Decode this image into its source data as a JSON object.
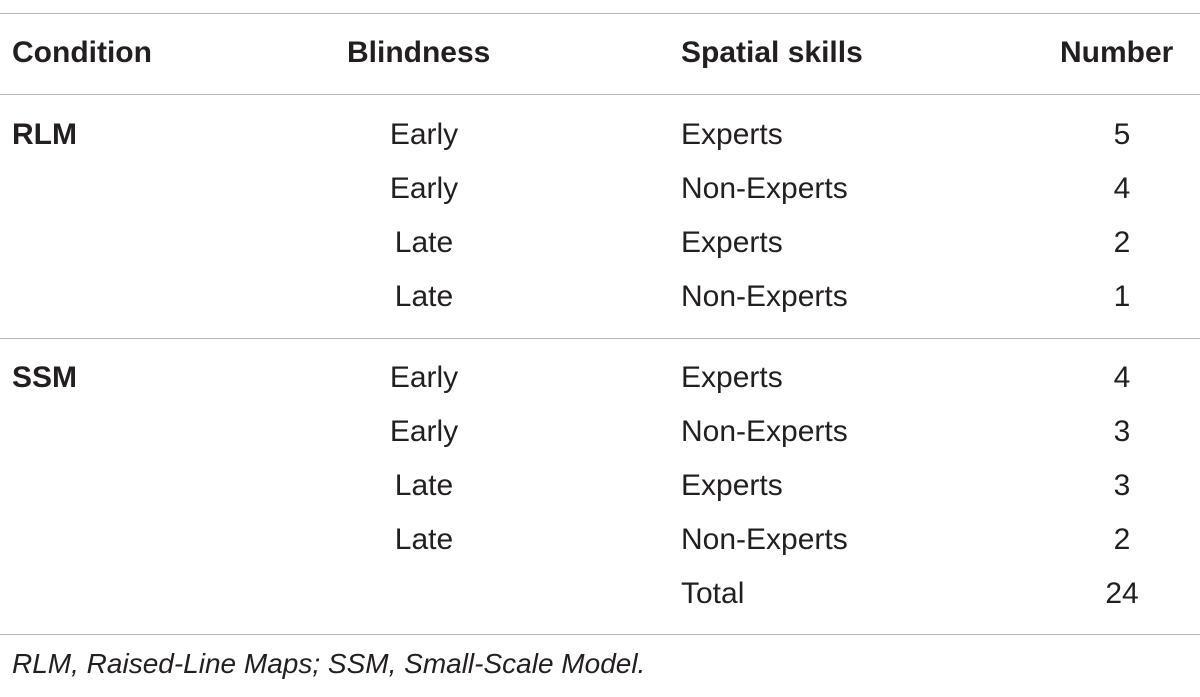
{
  "table": {
    "headers": {
      "condition": "Condition",
      "blindness": "Blindness",
      "spatial_skills": "Spatial skills",
      "number": "Number"
    },
    "groups": [
      {
        "condition": "RLM",
        "rows": [
          {
            "blindness": "Early",
            "spatial_skills": "Experts",
            "number": "5"
          },
          {
            "blindness": "Early",
            "spatial_skills": "Non-Experts",
            "number": "4"
          },
          {
            "blindness": "Late",
            "spatial_skills": "Experts",
            "number": "2"
          },
          {
            "blindness": "Late",
            "spatial_skills": "Non-Experts",
            "number": "1"
          }
        ]
      },
      {
        "condition": "SSM",
        "rows": [
          {
            "blindness": "Early",
            "spatial_skills": "Experts",
            "number": "4"
          },
          {
            "blindness": "Early",
            "spatial_skills": "Non-Experts",
            "number": "3"
          },
          {
            "blindness": "Late",
            "spatial_skills": "Experts",
            "number": "3"
          },
          {
            "blindness": "Late",
            "spatial_skills": "Non-Experts",
            "number": "2"
          }
        ]
      }
    ],
    "total": {
      "label": "Total",
      "number": "24"
    }
  },
  "footnote": "RLM, Raised-Line Maps; SSM, Small-Scale Model."
}
